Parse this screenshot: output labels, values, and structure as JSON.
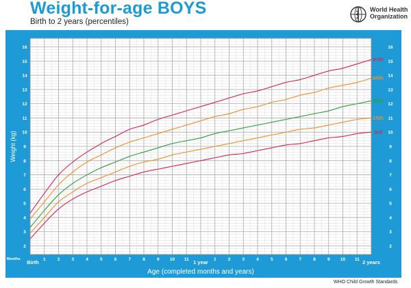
{
  "header": {
    "title": "Weight-for-age BOYS",
    "subtitle": "Birth to 2 years (percentiles)"
  },
  "logo": {
    "line1": "World Health",
    "line2": "Organization",
    "icon": "who-emblem-icon"
  },
  "footer": {
    "source": "WHO Child Growth Standards"
  },
  "colors": {
    "panel": "#1e9bd7",
    "grid": "#c9c9c9",
    "plot_bg": "#ffffff",
    "p97": "#d9214f",
    "p85": "#f28c28",
    "p50": "#2e9e3a",
    "p15": "#f28c28",
    "p3": "#d9214f"
  },
  "chart_data": {
    "type": "line",
    "xlabel": "Age (completed months and years)",
    "ylabel": "Weight (kg)",
    "months_label": "Months",
    "xlim": [
      0,
      24
    ],
    "ylim": [
      1.4,
      16.6
    ],
    "grid": true,
    "y_ticks": [
      2,
      3,
      4,
      5,
      6,
      7,
      8,
      9,
      10,
      11,
      12,
      13,
      14,
      15,
      16
    ],
    "x_ticks": [
      {
        "x": 0,
        "label": "Birth"
      },
      {
        "x": 1,
        "label": "1"
      },
      {
        "x": 2,
        "label": "2"
      },
      {
        "x": 3,
        "label": "3"
      },
      {
        "x": 4,
        "label": "4"
      },
      {
        "x": 5,
        "label": "5"
      },
      {
        "x": 6,
        "label": "6"
      },
      {
        "x": 7,
        "label": "7"
      },
      {
        "x": 8,
        "label": "8"
      },
      {
        "x": 9,
        "label": "9"
      },
      {
        "x": 10,
        "label": "10"
      },
      {
        "x": 11,
        "label": "11"
      },
      {
        "x": 12,
        "label": "1 year"
      },
      {
        "x": 13,
        "label": "1"
      },
      {
        "x": 14,
        "label": "2"
      },
      {
        "x": 15,
        "label": "3"
      },
      {
        "x": 16,
        "label": "4"
      },
      {
        "x": 17,
        "label": "5"
      },
      {
        "x": 18,
        "label": "6"
      },
      {
        "x": 19,
        "label": "7"
      },
      {
        "x": 20,
        "label": "8"
      },
      {
        "x": 21,
        "label": "9"
      },
      {
        "x": 22,
        "label": "10"
      },
      {
        "x": 23,
        "label": "11"
      },
      {
        "x": 24,
        "label": "2 years"
      }
    ],
    "x": [
      0,
      1,
      2,
      3,
      4,
      5,
      6,
      7,
      8,
      9,
      10,
      11,
      12,
      13,
      14,
      15,
      16,
      17,
      18,
      19,
      20,
      21,
      22,
      23,
      24
    ],
    "series": [
      {
        "name": "97th",
        "color_key": "p97",
        "values": [
          4.3,
          5.7,
          7.0,
          7.9,
          8.6,
          9.2,
          9.7,
          10.2,
          10.5,
          10.9,
          11.2,
          11.5,
          11.8,
          12.1,
          12.4,
          12.7,
          12.9,
          13.2,
          13.5,
          13.7,
          14.0,
          14.3,
          14.5,
          14.8,
          15.1
        ]
      },
      {
        "name": "85th",
        "color_key": "p85",
        "values": [
          3.9,
          5.1,
          6.3,
          7.2,
          7.9,
          8.4,
          8.9,
          9.3,
          9.6,
          9.9,
          10.2,
          10.5,
          10.8,
          11.1,
          11.3,
          11.6,
          11.8,
          12.1,
          12.3,
          12.6,
          12.8,
          13.1,
          13.3,
          13.5,
          13.8
        ]
      },
      {
        "name": "50th",
        "color_key": "p50",
        "values": [
          3.3,
          4.5,
          5.6,
          6.4,
          7.0,
          7.5,
          7.9,
          8.3,
          8.6,
          8.9,
          9.2,
          9.4,
          9.6,
          9.9,
          10.1,
          10.3,
          10.5,
          10.7,
          10.9,
          11.1,
          11.3,
          11.5,
          11.8,
          12.0,
          12.2
        ]
      },
      {
        "name": "15th",
        "color_key": "p15",
        "values": [
          2.9,
          4.0,
          5.1,
          5.8,
          6.4,
          6.8,
          7.2,
          7.6,
          7.9,
          8.1,
          8.4,
          8.6,
          8.8,
          9.0,
          9.2,
          9.4,
          9.6,
          9.8,
          10.0,
          10.2,
          10.3,
          10.5,
          10.7,
          10.9,
          11.0
        ]
      },
      {
        "name": "3rd",
        "color_key": "p3",
        "values": [
          2.5,
          3.6,
          4.6,
          5.3,
          5.8,
          6.2,
          6.6,
          6.9,
          7.2,
          7.4,
          7.6,
          7.8,
          8.0,
          8.2,
          8.4,
          8.5,
          8.7,
          8.9,
          9.1,
          9.2,
          9.4,
          9.6,
          9.7,
          9.9,
          10.0
        ]
      }
    ]
  }
}
